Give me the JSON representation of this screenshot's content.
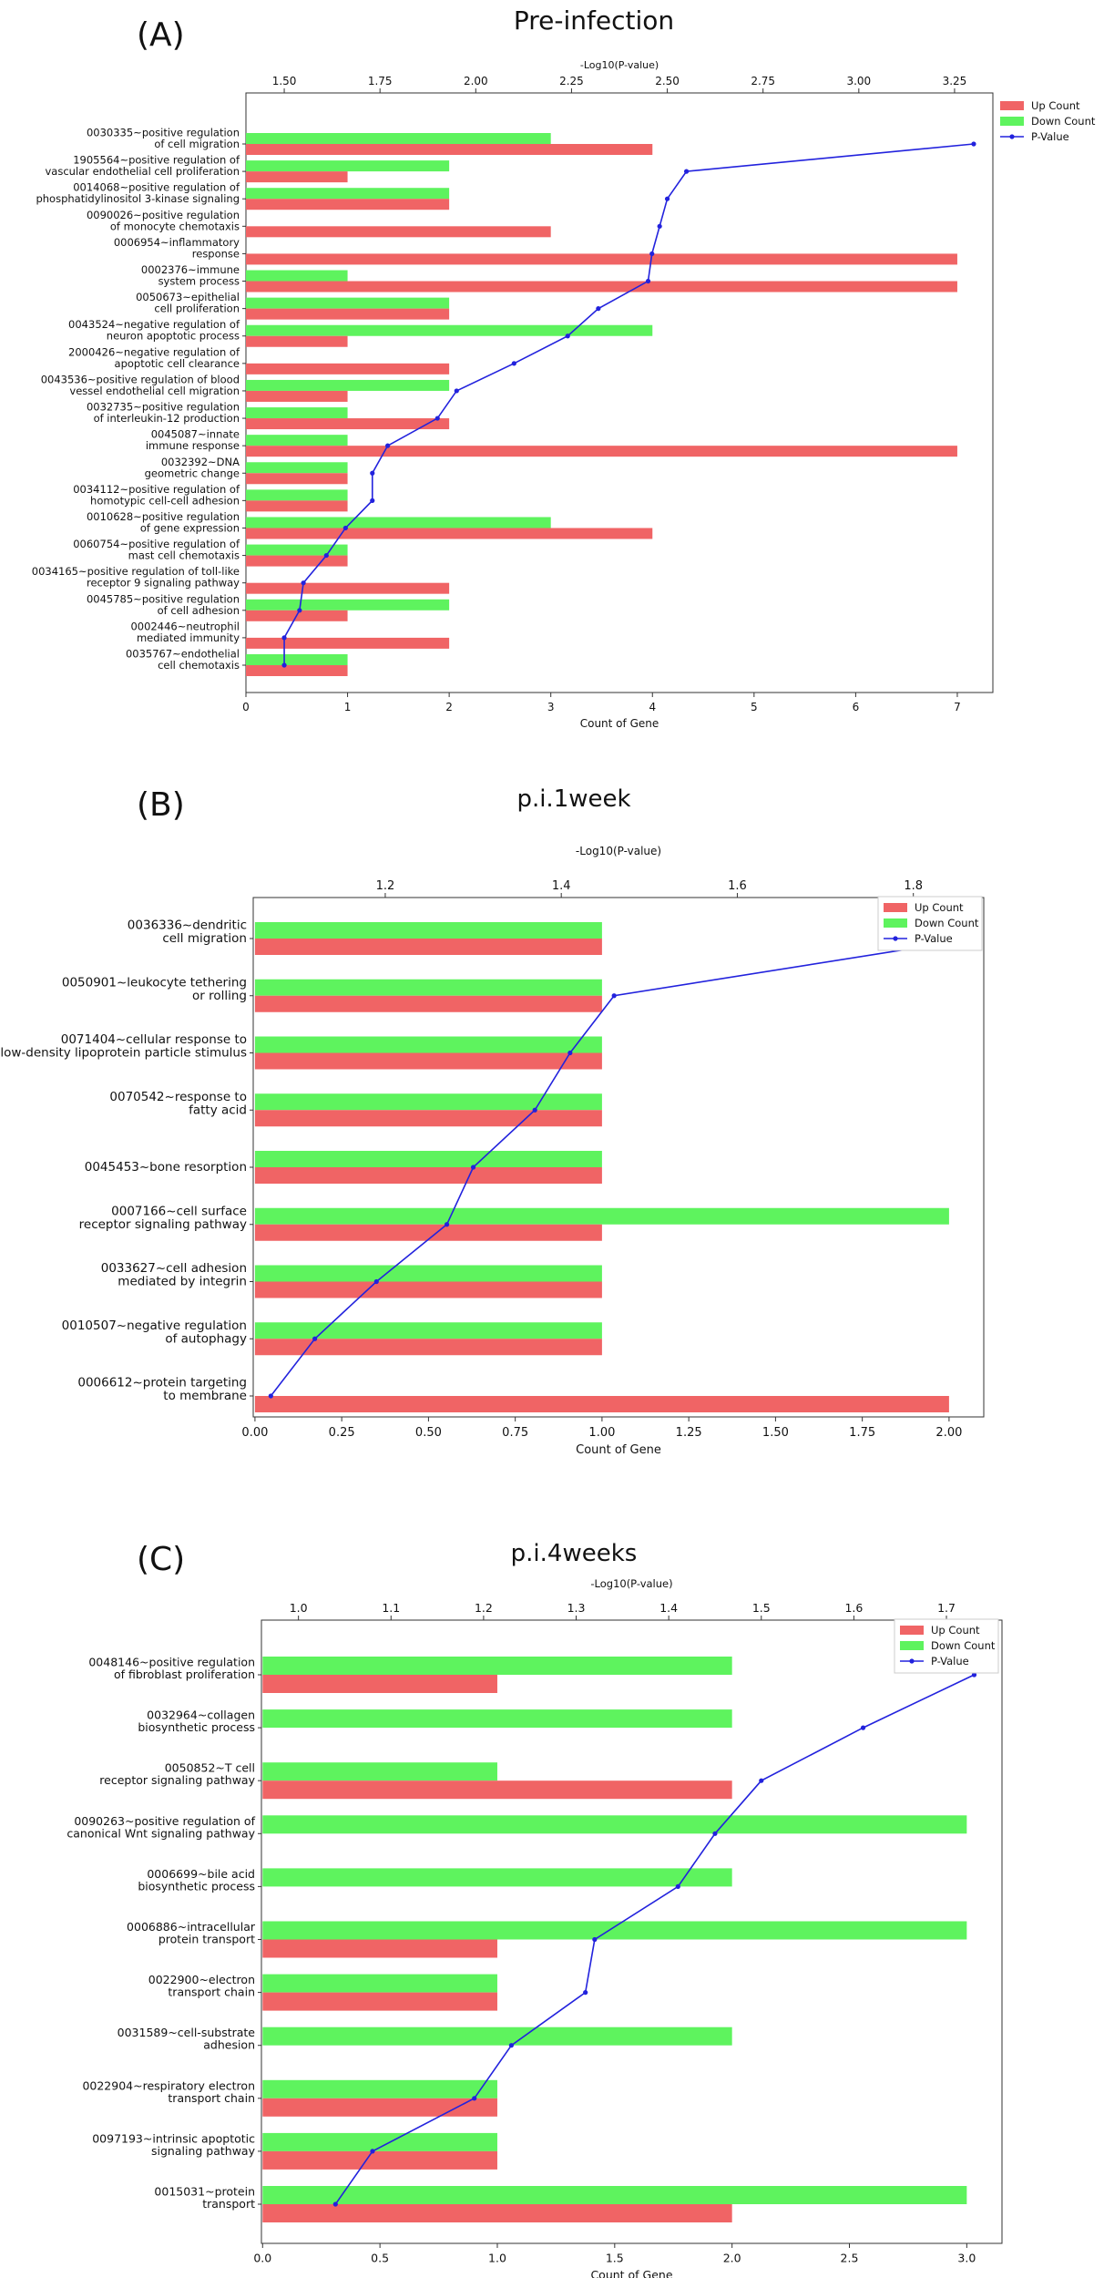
{
  "figure": {
    "legend_labels": {
      "up": "Up Count",
      "down": "Down Count",
      "pval": "P-Value"
    },
    "colors": {
      "up": "#f06465",
      "down": "#5ef35e",
      "pval": "#2222dd"
    }
  },
  "chart_data": [
    {
      "panel": "(A)",
      "type": "bar",
      "title": "Pre-infection",
      "xlabel": "Count of Gene",
      "x2label": "-Log10(P-value)",
      "xlim": [
        0,
        7.35
      ],
      "xticks": [
        0,
        1,
        2,
        3,
        4,
        5,
        6,
        7
      ],
      "xtick_labels": [
        "0",
        "1",
        "2",
        "3",
        "4",
        "5",
        "6",
        "7"
      ],
      "x2lim": [
        1.4,
        3.35
      ],
      "x2ticks": [
        1.5,
        1.75,
        2.0,
        2.25,
        2.5,
        2.75,
        3.0,
        3.25
      ],
      "x2tick_labels": [
        "1.50",
        "1.75",
        "2.00",
        "2.25",
        "2.50",
        "2.75",
        "3.00",
        "3.25"
      ],
      "legend_position": "upper right, outside",
      "categories": [
        [
          "0030335~positive regulation",
          "of cell migration"
        ],
        [
          "1905564~positive regulation of",
          "vascular endothelial cell proliferation"
        ],
        [
          "0014068~positive regulation of",
          "phosphatidylinositol 3-kinase signaling"
        ],
        [
          "0090026~positive regulation",
          "of monocyte chemotaxis"
        ],
        [
          "0006954~inflammatory",
          "response"
        ],
        [
          "0002376~immune",
          "system process"
        ],
        [
          "0050673~epithelial",
          "cell proliferation"
        ],
        [
          "0043524~negative regulation of",
          "neuron apoptotic process"
        ],
        [
          "2000426~negative regulation of",
          "apoptotic cell clearance"
        ],
        [
          "0043536~positive regulation of blood",
          "vessel endothelial cell migration"
        ],
        [
          "0032735~positive regulation",
          "of interleukin-12 production"
        ],
        [
          "0045087~innate",
          "immune response"
        ],
        [
          "0032392~DNA",
          "geometric change"
        ],
        [
          "0034112~positive regulation of",
          "homotypic cell-cell adhesion"
        ],
        [
          "0010628~positive regulation",
          "of gene expression"
        ],
        [
          "0060754~positive regulation of",
          "mast cell chemotaxis"
        ],
        [
          "0034165~positive regulation of toll-like",
          "receptor 9 signaling pathway"
        ],
        [
          "0045785~positive regulation",
          "of cell adhesion"
        ],
        [
          "0002446~neutrophil",
          "mediated immunity"
        ],
        [
          "0035767~endothelial",
          "cell chemotaxis"
        ]
      ],
      "series": [
        {
          "name": "Up Count",
          "values": [
            4,
            1,
            2,
            3,
            7,
            7,
            2,
            1,
            2,
            1,
            2,
            7,
            1,
            1,
            4,
            1,
            2,
            1,
            2,
            1
          ]
        },
        {
          "name": "Down Count",
          "values": [
            3,
            2,
            2,
            0,
            0,
            1,
            2,
            4,
            0,
            2,
            1,
            1,
            1,
            1,
            3,
            1,
            0,
            2,
            0,
            1
          ]
        },
        {
          "name": "P-Value",
          "axis": "-Log10(P-value)",
          "values": [
            3.3,
            2.55,
            2.5,
            2.48,
            2.46,
            2.45,
            2.32,
            2.24,
            2.1,
            1.95,
            1.9,
            1.77,
            1.73,
            1.73,
            1.66,
            1.61,
            1.55,
            1.54,
            1.5,
            1.5
          ]
        }
      ]
    },
    {
      "panel": "(B)",
      "type": "bar",
      "title": "p.i.1week",
      "xlabel": "Count of Gene",
      "x2label": "-Log10(P-value)",
      "xlim": [
        -0.005,
        2.1
      ],
      "xticks": [
        0,
        0.25,
        0.5,
        0.75,
        1.0,
        1.25,
        1.5,
        1.75,
        2.0
      ],
      "xtick_labels": [
        "0.00",
        "0.25",
        "0.50",
        "0.75",
        "1.00",
        "1.25",
        "1.50",
        "1.75",
        "2.00"
      ],
      "x2lim": [
        1.05,
        1.88
      ],
      "x2ticks": [
        1.2,
        1.4,
        1.6,
        1.8
      ],
      "x2tick_labels": [
        "1.2",
        "1.4",
        "1.6",
        "1.8"
      ],
      "legend_position": "upper right",
      "categories": [
        [
          "0036336~dendritic",
          "cell migration"
        ],
        [
          "0050901~leukocyte tethering",
          "or rolling"
        ],
        [
          "0071404~cellular response to",
          "low-density lipoprotein particle stimulus"
        ],
        [
          "0070542~response to",
          "fatty acid"
        ],
        [
          "0045453~bone resorption"
        ],
        [
          "0007166~cell surface",
          "receptor signaling pathway"
        ],
        [
          "0033627~cell adhesion",
          "mediated by integrin"
        ],
        [
          "0010507~negative regulation",
          "of autophagy"
        ],
        [
          "0006612~protein targeting",
          "to membrane"
        ]
      ],
      "series": [
        {
          "name": "Up Count",
          "values": [
            1,
            1,
            1,
            1,
            1,
            1,
            1,
            1,
            2
          ]
        },
        {
          "name": "Down Count",
          "values": [
            1,
            1,
            1,
            1,
            1,
            2,
            1,
            1,
            0
          ]
        },
        {
          "name": "P-Value",
          "axis": "-Log10(P-value)",
          "values": [
            1.87,
            1.46,
            1.41,
            1.37,
            1.3,
            1.27,
            1.19,
            1.12,
            1.07
          ]
        }
      ]
    },
    {
      "panel": "(C)",
      "type": "bar",
      "title": "p.i.4weeks",
      "xlabel": "Count of Gene",
      "x2label": "-Log10(P-value)",
      "xlim": [
        -0.005,
        3.15
      ],
      "xticks": [
        0,
        0.5,
        1.0,
        1.5,
        2.0,
        2.5,
        3.0
      ],
      "xtick_labels": [
        "0.0",
        "0.5",
        "1.0",
        "1.5",
        "2.0",
        "2.5",
        "3.0"
      ],
      "x2lim": [
        0.96,
        1.76
      ],
      "x2ticks": [
        1.0,
        1.1,
        1.2,
        1.3,
        1.4,
        1.5,
        1.6,
        1.7
      ],
      "x2tick_labels": [
        "1.0",
        "1.1",
        "1.2",
        "1.3",
        "1.4",
        "1.5",
        "1.6",
        "1.7"
      ],
      "legend_position": "upper right",
      "categories": [
        [
          "0048146~positive regulation",
          "of fibroblast proliferation"
        ],
        [
          "0032964~collagen",
          "biosynthetic process"
        ],
        [
          "0050852~T cell",
          "receptor signaling pathway"
        ],
        [
          "0090263~positive regulation of",
          "canonical Wnt signaling pathway"
        ],
        [
          "0006699~bile acid",
          "biosynthetic process"
        ],
        [
          "0006886~intracellular",
          "protein transport"
        ],
        [
          "0022900~electron",
          "transport chain"
        ],
        [
          "0031589~cell-substrate",
          "adhesion"
        ],
        [
          "0022904~respiratory electron",
          "transport chain"
        ],
        [
          "0097193~intrinsic apoptotic",
          "signaling pathway"
        ],
        [
          "0015031~protein",
          "transport"
        ]
      ],
      "series": [
        {
          "name": "Up Count",
          "values": [
            1,
            0,
            2,
            0,
            0,
            1,
            1,
            0,
            1,
            1,
            2
          ]
        },
        {
          "name": "Down Count",
          "values": [
            2,
            2,
            1,
            3,
            2,
            3,
            1,
            2,
            1,
            1,
            3
          ]
        },
        {
          "name": "P-Value",
          "axis": "-Log10(P-value)",
          "values": [
            1.73,
            1.61,
            1.5,
            1.45,
            1.41,
            1.32,
            1.31,
            1.23,
            1.19,
            1.08,
            1.04
          ]
        }
      ]
    }
  ]
}
